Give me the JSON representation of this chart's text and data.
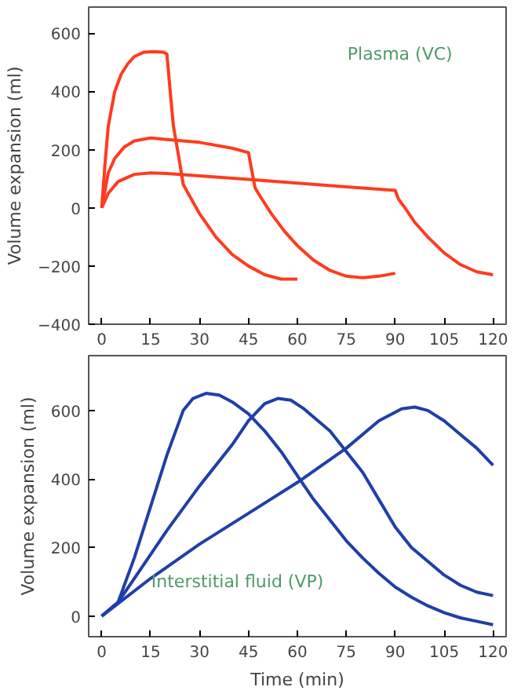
{
  "chart_data": [
    {
      "type": "line",
      "ylabel": "Volume expansion (ml)",
      "annotations": [
        "Plasma (VC)"
      ],
      "xlim": [
        -4,
        124
      ],
      "ylim": [
        -400,
        690
      ],
      "xticks": [
        0,
        15,
        30,
        45,
        60,
        75,
        90,
        105,
        120
      ],
      "yticks": [
        -400,
        -200,
        0,
        200,
        400,
        600
      ],
      "series": [
        {
          "color": "#ff3b1f",
          "x": [
            0,
            1,
            2,
            4,
            6,
            8,
            10,
            13,
            16,
            19,
            20,
            21,
            22,
            24,
            25,
            27,
            30,
            35,
            40,
            45,
            50,
            55,
            60
          ],
          "values": [
            0,
            150,
            280,
            400,
            460,
            495,
            520,
            535,
            537,
            535,
            528,
            400,
            280,
            150,
            80,
            40,
            -20,
            -100,
            -160,
            -200,
            -230,
            -245,
            -245
          ]
        },
        {
          "color": "#ff3b1f",
          "x": [
            0,
            2,
            4,
            7,
            10,
            15,
            20,
            30,
            40,
            45,
            46,
            47,
            48,
            52,
            56,
            60,
            65,
            70,
            75,
            80,
            85,
            90
          ],
          "values": [
            0,
            120,
            170,
            210,
            230,
            240,
            235,
            225,
            205,
            190,
            130,
            70,
            50,
            -20,
            -80,
            -130,
            -180,
            -215,
            -235,
            -240,
            -235,
            -225
          ]
        },
        {
          "color": "#ff3b1f",
          "x": [
            0,
            2,
            5,
            10,
            15,
            20,
            30,
            45,
            60,
            75,
            90,
            91,
            93,
            96,
            100,
            105,
            110,
            115,
            120
          ],
          "values": [
            0,
            50,
            90,
            115,
            120,
            118,
            110,
            98,
            85,
            72,
            60,
            30,
            0,
            -50,
            -100,
            -155,
            -195,
            -220,
            -230
          ]
        }
      ]
    },
    {
      "type": "line",
      "xlabel": "Time (min)",
      "ylabel": "Volume expansion (ml)",
      "annotations": [
        "Interstitial fluid (VP)"
      ],
      "xlim": [
        -4,
        124
      ],
      "ylim": [
        -60,
        760
      ],
      "xticks": [
        0,
        15,
        30,
        45,
        60,
        75,
        90,
        105,
        120
      ],
      "yticks": [
        0,
        200,
        400,
        600
      ],
      "series": [
        {
          "color": "#1f3fa8",
          "x": [
            0,
            5,
            10,
            15,
            20,
            25,
            28,
            32,
            36,
            40,
            45,
            50,
            55,
            60,
            65,
            70,
            75,
            80,
            85,
            90,
            95,
            100,
            105,
            110,
            115,
            120
          ],
          "values": [
            0,
            40,
            170,
            320,
            470,
            600,
            635,
            650,
            645,
            625,
            590,
            540,
            480,
            410,
            340,
            280,
            220,
            170,
            125,
            85,
            55,
            30,
            10,
            -5,
            -15,
            -25
          ]
        },
        {
          "color": "#1f3fa8",
          "x": [
            0,
            5,
            10,
            20,
            30,
            40,
            45,
            50,
            54,
            58,
            62,
            70,
            75,
            80,
            85,
            90,
            95,
            100,
            105,
            110,
            115,
            120
          ],
          "values": [
            0,
            40,
            110,
            250,
            380,
            500,
            570,
            620,
            635,
            630,
            605,
            540,
            480,
            420,
            340,
            260,
            200,
            160,
            120,
            90,
            70,
            60
          ]
        },
        {
          "color": "#1f3fa8",
          "x": [
            0,
            15,
            30,
            45,
            60,
            75,
            85,
            92,
            96,
            100,
            105,
            110,
            115,
            120
          ],
          "values": [
            0,
            110,
            210,
            300,
            390,
            490,
            570,
            605,
            610,
            600,
            570,
            530,
            490,
            440
          ]
        }
      ]
    }
  ]
}
